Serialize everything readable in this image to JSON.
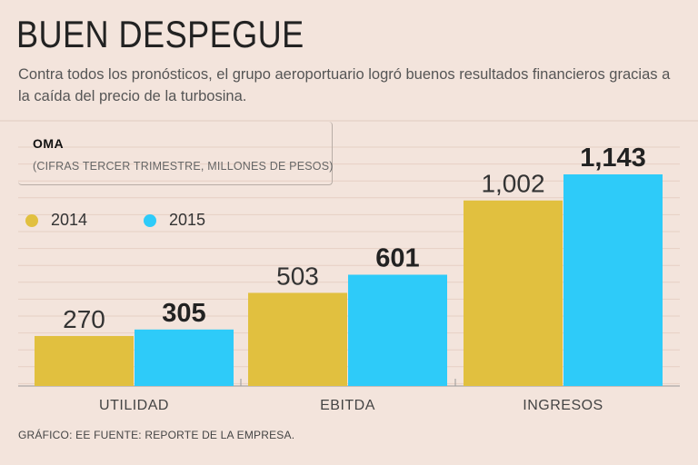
{
  "header": {
    "title": "BUEN DESPEGUE",
    "subtitle": "Contra todos los pronósticos, el grupo aeroportuario logró buenos resultados financieros gracias a la caída del precio de la turbosina."
  },
  "box": {
    "company": "OMA",
    "units": "(CIFRAS TERCER TRIMESTRE, MILLONES DE PESOS)"
  },
  "legend": [
    {
      "label": "2014",
      "color": "#e1c03f"
    },
    {
      "label": "2015",
      "color": "#2ecbf9"
    }
  ],
  "footer": "GRÁFICO: EE  FUENTE: REPORTE DE LA EMPRESA.",
  "chart_data": {
    "type": "bar",
    "categories": [
      "UTILIDAD",
      "EBITDA",
      "INGRESOS"
    ],
    "series": [
      {
        "name": "2014",
        "values": [
          270,
          503,
          1002
        ],
        "labels": [
          "270",
          "503",
          "1,002"
        ],
        "color": "#e1c03f"
      },
      {
        "name": "2015",
        "values": [
          305,
          601,
          1143
        ],
        "labels": [
          "305",
          "601",
          "1,143"
        ],
        "color": "#2ecbf9"
      }
    ],
    "ylim": [
      0,
      1250
    ],
    "grid": true,
    "legend_position": "top-left"
  }
}
